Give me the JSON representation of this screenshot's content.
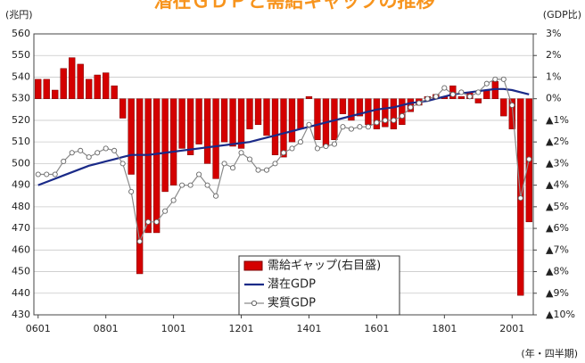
{
  "chart_data": {
    "type": "bar_line",
    "title": "潜在ＧＤＰと需給ギャップの推移",
    "y_label": "(兆円)",
    "y2_label": "(GDP比)",
    "x_label": "(年・四半期)",
    "categories": [
      "0601",
      null,
      null,
      null,
      null,
      null,
      null,
      null,
      "0801",
      null,
      null,
      null,
      null,
      null,
      null,
      null,
      "1001",
      null,
      null,
      null,
      null,
      null,
      null,
      null,
      "1201",
      null,
      null,
      null,
      null,
      null,
      null,
      null,
      "1401",
      null,
      null,
      null,
      null,
      null,
      null,
      null,
      "1601",
      null,
      null,
      null,
      null,
      null,
      null,
      null,
      "1801",
      null,
      null,
      null,
      null,
      null,
      null,
      null,
      "2001",
      null,
      null
    ],
    "series": [
      {
        "name": "需給ギャップ(右目盛)",
        "type": "bar",
        "axis": "y2",
        "color": "#d40000",
        "values": [
          0.9,
          0.9,
          0.4,
          1.4,
          1.9,
          1.6,
          0.9,
          1.1,
          1.2,
          0.6,
          -0.9,
          -3.5,
          -8.1,
          -6.2,
          -6.2,
          -4.3,
          -4.0,
          -2.3,
          -2.6,
          -2.1,
          -3.0,
          -3.7,
          -2.0,
          -2.2,
          -2.3,
          -1.4,
          -1.2,
          -1.7,
          -2.6,
          -2.7,
          -2.0,
          -1.4,
          0.1,
          -1.9,
          -2.2,
          -1.9,
          -0.7,
          -1.0,
          -0.8,
          -1.2,
          -1.4,
          -1.3,
          -1.4,
          -1.2,
          -0.6,
          -0.3,
          0.1,
          0.2,
          0.1,
          0.6,
          0.1,
          0.3,
          -0.2,
          0.4,
          0.8,
          -0.8,
          -1.4,
          -9.1,
          -5.7
        ]
      },
      {
        "name": "潜在GDP",
        "type": "line",
        "axis": "y",
        "color": "#1a2a88",
        "values": [
          490,
          491.5,
          493,
          494.5,
          496,
          497.5,
          499,
          500,
          501,
          502,
          503,
          504,
          504,
          504,
          504.5,
          505,
          505.5,
          506,
          506.5,
          507,
          507.5,
          508,
          508.5,
          509,
          509.5,
          510,
          511,
          512,
          513,
          514,
          515,
          516,
          517,
          518,
          519,
          520,
          521,
          522,
          523,
          524,
          525,
          525.5,
          526,
          527,
          528,
          528.5,
          529,
          530,
          531,
          532,
          532.5,
          533,
          533.5,
          534,
          534.5,
          534.5,
          534,
          533,
          532
        ]
      },
      {
        "name": "実質GDP",
        "type": "line_marker",
        "axis": "y",
        "color": "#8a8a8a",
        "values": [
          495,
          495,
          495,
          501,
          505,
          506,
          503,
          505,
          507,
          506,
          500,
          487,
          464,
          473,
          473,
          478,
          483,
          490,
          490,
          495,
          490,
          485,
          500,
          498,
          505,
          502,
          497,
          497,
          500,
          505,
          507,
          510,
          518,
          507,
          508,
          509,
          517,
          516,
          517,
          517,
          519,
          520,
          520,
          522,
          526,
          528,
          530,
          531,
          535,
          532,
          533,
          531,
          533,
          537,
          539,
          539,
          527,
          484,
          502
        ]
      }
    ],
    "ylim": [
      430,
      560
    ],
    "yticks": [
      430,
      440,
      450,
      460,
      470,
      480,
      490,
      500,
      510,
      520,
      530,
      540,
      550,
      560
    ],
    "y2lim": [
      -10,
      3
    ],
    "y2ticks": [
      {
        "value": 3,
        "label": "3%"
      },
      {
        "value": 2,
        "label": "2%"
      },
      {
        "value": 1,
        "label": "1%"
      },
      {
        "value": 0,
        "label": "0%"
      },
      {
        "value": -1,
        "label": "▲1%"
      },
      {
        "value": -2,
        "label": "▲2%"
      },
      {
        "value": -3,
        "label": "▲3%"
      },
      {
        "value": -4,
        "label": "▲4%"
      },
      {
        "value": -5,
        "label": "▲5%"
      },
      {
        "value": -6,
        "label": "▲6%"
      },
      {
        "value": -7,
        "label": "▲7%"
      },
      {
        "value": -8,
        "label": "▲8%"
      },
      {
        "value": -9,
        "label": "▲9%"
      },
      {
        "value": -10,
        "label": "▲10%"
      }
    ],
    "grid": true,
    "legend": "bottom"
  }
}
